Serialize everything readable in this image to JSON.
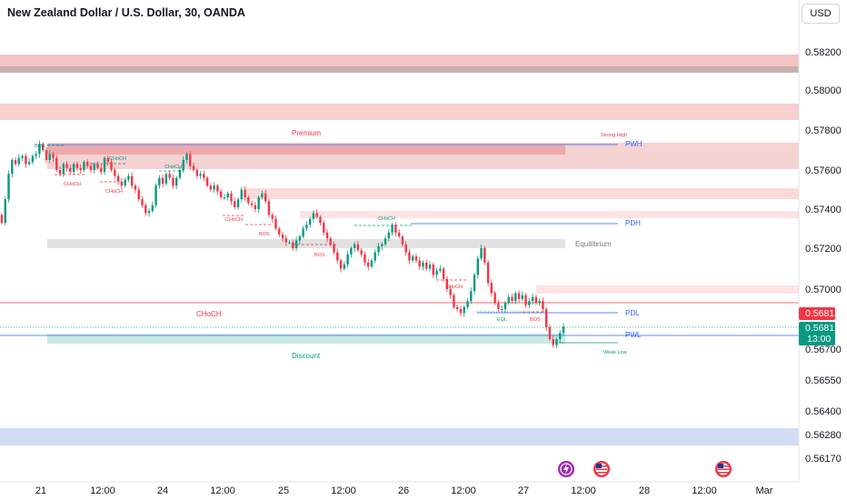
{
  "header": {
    "title": "New Zealand Dollar / U.S. Dollar, 30, OANDA",
    "currency": "USD"
  },
  "chart_data": {
    "type": "candlestick",
    "symbol": "NZDUSD",
    "interval": "30",
    "source": "OANDA",
    "y_ticks": [
      "0.58200",
      "0.58000",
      "0.57800",
      "0.57600",
      "0.57400",
      "0.57200",
      "0.57000",
      "0.56700",
      "0.56550",
      "0.56400",
      "0.56280",
      "0.56170"
    ],
    "x_ticks": [
      "21",
      "12:00",
      "24",
      "12:00",
      "25",
      "12:00",
      "26",
      "12:00",
      "27",
      "12:00",
      "28",
      "12:00",
      "Mar"
    ],
    "last_price": "0.56813",
    "current_price": "0.56812",
    "countdown": "13:00",
    "closes": [
      0.5733,
      0.5745,
      0.5758,
      0.5765,
      0.5763,
      0.5766,
      0.5767,
      0.5763,
      0.5764,
      0.5767,
      0.5768,
      0.5773,
      0.577,
      0.5765,
      0.5768,
      0.5766,
      0.576,
      0.5758,
      0.5763,
      0.5761,
      0.5759,
      0.5763,
      0.5761,
      0.576,
      0.5764,
      0.5762,
      0.576,
      0.5763,
      0.5761,
      0.5759,
      0.5766,
      0.5764,
      0.576,
      0.5757,
      0.5754,
      0.5752,
      0.5755,
      0.5757,
      0.5752,
      0.575,
      0.5745,
      0.5742,
      0.5738,
      0.5739,
      0.5742,
      0.5752,
      0.5756,
      0.5753,
      0.5758,
      0.5756,
      0.5752,
      0.5756,
      0.576,
      0.5765,
      0.5768,
      0.5762,
      0.576,
      0.5757,
      0.5758,
      0.5756,
      0.5752,
      0.575,
      0.5752,
      0.5749,
      0.5746,
      0.5746,
      0.5748,
      0.5744,
      0.5741,
      0.5745,
      0.575,
      0.5746,
      0.5743,
      0.5742,
      0.574,
      0.5746,
      0.5748,
      0.5744,
      0.5737,
      0.5735,
      0.573,
      0.5727,
      0.5725,
      0.5723,
      0.5723,
      0.572,
      0.5724,
      0.5726,
      0.573,
      0.5732,
      0.5735,
      0.5738,
      0.5736,
      0.5733,
      0.5728,
      0.5725,
      0.5722,
      0.5718,
      0.5714,
      0.571,
      0.5712,
      0.5717,
      0.572,
      0.5722,
      0.5719,
      0.5717,
      0.5713,
      0.5711,
      0.5714,
      0.5718,
      0.5721,
      0.5722,
      0.5725,
      0.5728,
      0.5732,
      0.5728,
      0.5726,
      0.5722,
      0.5718,
      0.5714,
      0.5716,
      0.5714,
      0.5711,
      0.5713,
      0.571,
      0.5712,
      0.5707,
      0.5709,
      0.571,
      0.5705,
      0.57,
      0.5697,
      0.5691,
      0.569,
      0.5688,
      0.5691,
      0.5694,
      0.5699,
      0.5707,
      0.5715,
      0.572,
      0.5713,
      0.5703,
      0.5698,
      0.5693,
      0.569,
      0.569,
      0.5693,
      0.5696,
      0.5694,
      0.5698,
      0.5695,
      0.5697,
      0.5692,
      0.5694,
      0.5696,
      0.5693,
      0.5694,
      0.569,
      0.5681,
      0.5675,
      0.5672,
      0.5675,
      0.5678,
      0.56812
    ]
  },
  "zones": {
    "premium": "Premium",
    "equilibrium": "Equilibrium",
    "discount": "Discount",
    "pwh": "PWH",
    "pdh": "PDH",
    "pdl": "PDL",
    "pwl": "PWL",
    "strong_high": "Strong High",
    "weak_low": "Weak Low",
    "choch_big": "CHoCH"
  },
  "structure_labels": [
    {
      "text": "BOS",
      "color": "#089981"
    },
    {
      "text": "CHoCH",
      "color": "#089981"
    },
    {
      "text": "CHoCH",
      "color": "#089981"
    },
    {
      "text": "CHoCH",
      "color": "#f23645"
    },
    {
      "text": "CHoCH",
      "color": "#f23645"
    },
    {
      "text": "CHoCH",
      "color": "#f23645"
    },
    {
      "text": "BOS",
      "color": "#f23645"
    },
    {
      "text": "BOS",
      "color": "#f23645"
    },
    {
      "text": "CHoCH",
      "color": "#089981"
    },
    {
      "text": "CHoCH",
      "color": "#f23645"
    },
    {
      "text": "EQL",
      "color": "#089981"
    },
    {
      "text": "BOS",
      "color": "#f23645"
    }
  ],
  "colors": {
    "up": "#089981",
    "down": "#f23645",
    "axis_text": "#131722",
    "grid": "#f0f3fa",
    "level_blue": "#2962ff"
  }
}
